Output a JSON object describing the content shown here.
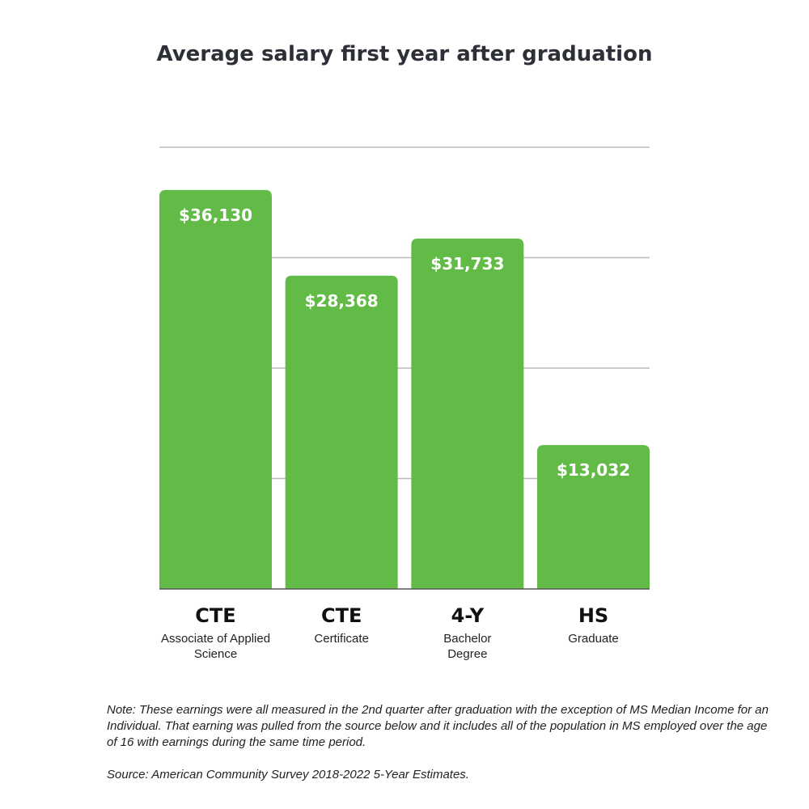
{
  "chart_data": {
    "type": "bar",
    "title": "Average salary first year after graduation",
    "categories": [
      {
        "main": "CTE",
        "sub": "Associate of Applied Science"
      },
      {
        "main": "CTE",
        "sub": "Certificate"
      },
      {
        "main": "4-Y",
        "sub": "Bachelor Degree"
      },
      {
        "main": "HS",
        "sub": "Graduate"
      }
    ],
    "values": [
      36130,
      28368,
      31733,
      13032
    ],
    "value_labels": [
      "$36,130",
      "$28,368",
      "$31,733",
      "$13,032"
    ],
    "ylim": [
      0,
      40000
    ],
    "grid": true,
    "bar_color": "#61bb46",
    "grid_color": "#bbbbbb"
  },
  "note": "Note: These earnings were all measured in the 2nd quarter after graduation with the exception of MS Median Income for an Individual. That earning was pulled from the source below and it includes all of the population in MS employed over the age of 16 with earnings during the same time period.",
  "source": "Source: American Community Survey 2018-2022 5-Year Estimates."
}
